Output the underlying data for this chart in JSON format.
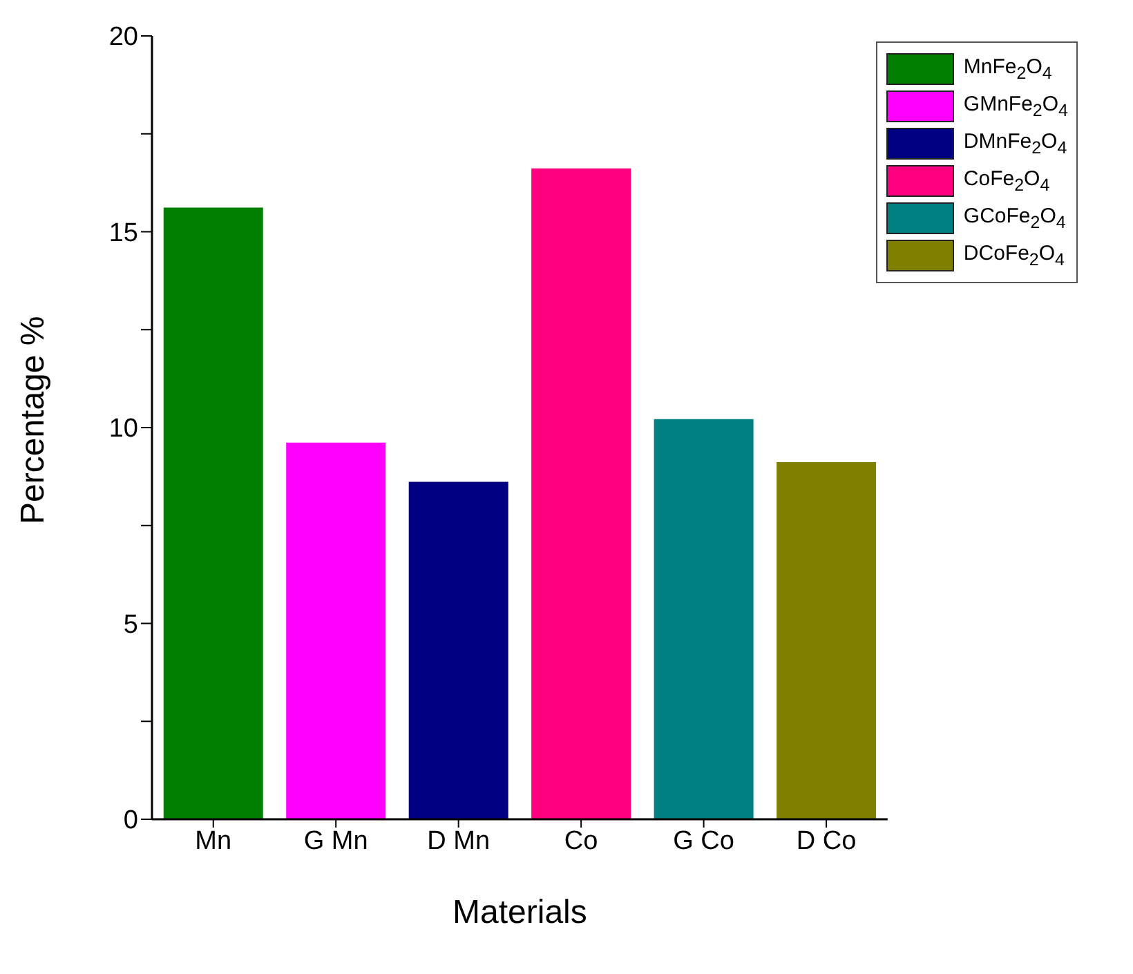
{
  "chart_data": {
    "type": "bar",
    "xlabel": "Materials",
    "ylabel": "Percentage %",
    "categories": [
      "Mn",
      "G Mn",
      "D Mn",
      "Co",
      "G Co",
      "D Co"
    ],
    "stacked": true,
    "series": [
      {
        "name": "MnFe$_{2}$O$_{4}$",
        "color": "#008000",
        "values": [
          15.6,
          null,
          null,
          null,
          null,
          null
        ]
      },
      {
        "name": "GMnFe$_{2}$O$_{4}$",
        "color": "#ff00ff",
        "values": [
          null,
          9.6,
          null,
          null,
          null,
          null
        ]
      },
      {
        "name": "DMnFe$_{2}$O$_{4}$",
        "color": "#000080",
        "values": [
          null,
          null,
          8.6,
          null,
          null,
          null
        ]
      },
      {
        "name": "CoFe$_{2}$O$_{4}$",
        "color": "#ff0080",
        "values": [
          null,
          null,
          null,
          16.6,
          null,
          null
        ]
      },
      {
        "name": "GCoFe$_{2}$O$_{4}$",
        "color": "#008080",
        "values": [
          null,
          null,
          null,
          null,
          10.2,
          null
        ]
      },
      {
        "name": "DCoFe$_{2}$O$_{4}$",
        "color": "#808000",
        "values": [
          null,
          null,
          null,
          null,
          null,
          9.1
        ]
      }
    ],
    "ylim": [
      0,
      20
    ],
    "yticks": [
      0,
      {
        "value": 2.5,
        "label": null
      },
      5,
      {
        "value": 7.5,
        "label": null
      },
      10,
      {
        "value": 12.5,
        "label": null
      },
      15,
      {
        "value": 17.5,
        "label": null
      },
      20
    ],
    "grid": false,
    "legend": "top right"
  }
}
